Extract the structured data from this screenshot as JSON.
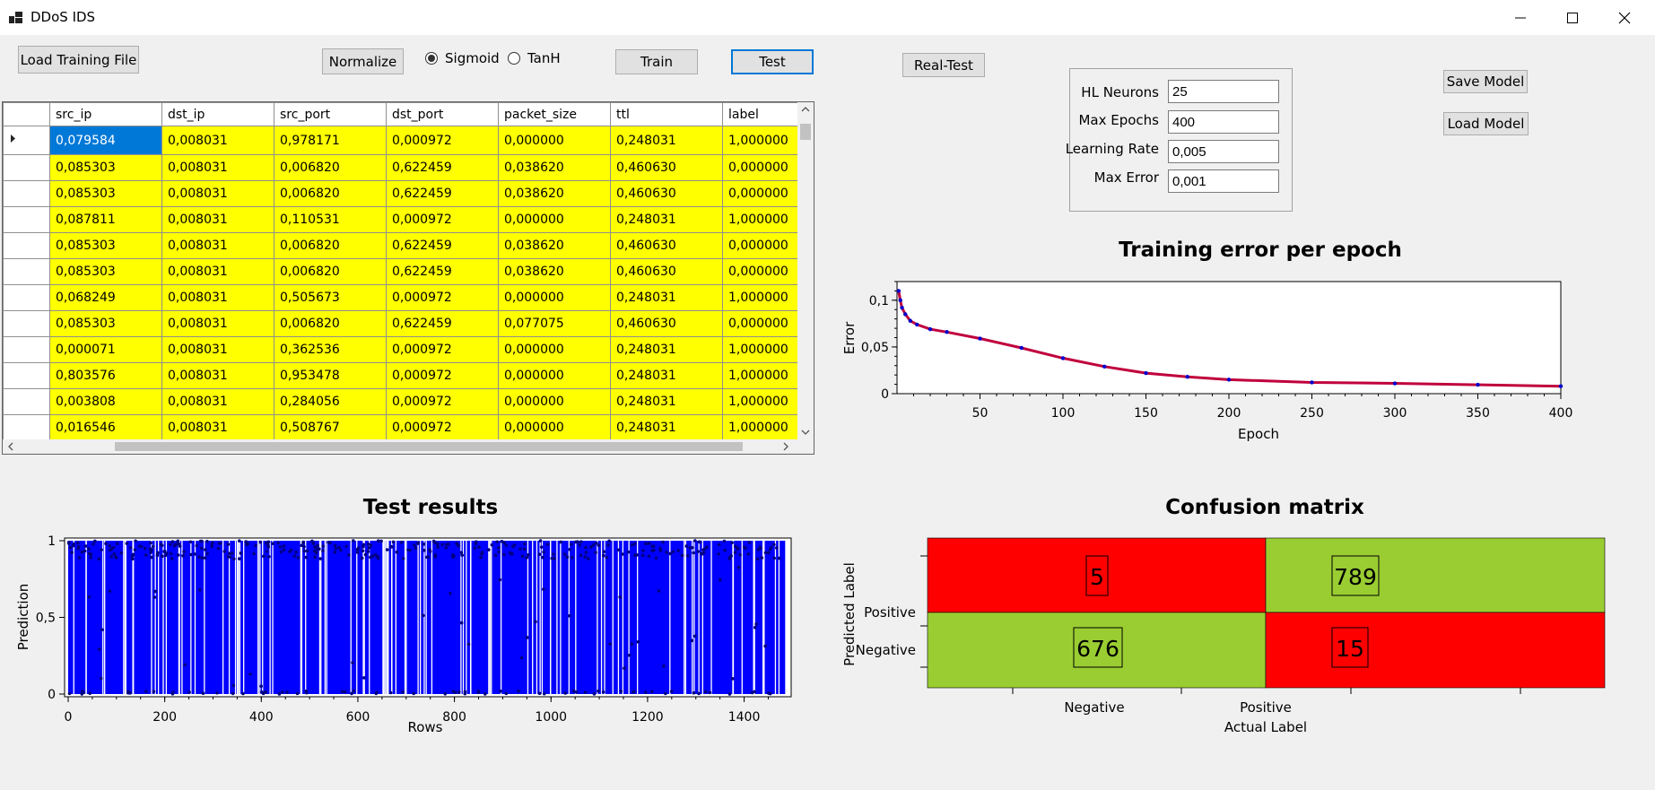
{
  "window": {
    "title": "DDoS IDS"
  },
  "toolbar": {
    "load_training_file": "Load Training File",
    "normalize": "Normalize",
    "sigmoid": "Sigmoid",
    "tanh": "TanH",
    "train": "Train",
    "test": "Test",
    "real_test": "Real-Test",
    "save_model": "Save Model",
    "load_model": "Load Model"
  },
  "activation": {
    "selected": "Sigmoid"
  },
  "params": {
    "hl_neurons": {
      "label": "HL Neurons",
      "value": "25"
    },
    "max_epochs": {
      "label": "Max Epochs",
      "value": "400"
    },
    "learning_rate": {
      "label": "Learning Rate",
      "value": "0,005"
    },
    "max_error": {
      "label": "Max Error",
      "value": "0,001"
    }
  },
  "grid": {
    "columns": [
      "src_ip",
      "dst_ip",
      "src_port",
      "dst_port",
      "packet_size",
      "ttl",
      "label"
    ],
    "rows": [
      [
        "0,079584",
        "0,008031",
        "0,978171",
        "0,000972",
        "0,000000",
        "0,248031",
        "1,000000"
      ],
      [
        "0,085303",
        "0,008031",
        "0,006820",
        "0,622459",
        "0,038620",
        "0,460630",
        "0,000000"
      ],
      [
        "0,085303",
        "0,008031",
        "0,006820",
        "0,622459",
        "0,038620",
        "0,460630",
        "0,000000"
      ],
      [
        "0,087811",
        "0,008031",
        "0,110531",
        "0,000972",
        "0,000000",
        "0,248031",
        "1,000000"
      ],
      [
        "0,085303",
        "0,008031",
        "0,006820",
        "0,622459",
        "0,038620",
        "0,460630",
        "0,000000"
      ],
      [
        "0,085303",
        "0,008031",
        "0,006820",
        "0,622459",
        "0,038620",
        "0,460630",
        "0,000000"
      ],
      [
        "0,068249",
        "0,008031",
        "0,505673",
        "0,000972",
        "0,000000",
        "0,248031",
        "1,000000"
      ],
      [
        "0,085303",
        "0,008031",
        "0,006820",
        "0,622459",
        "0,077075",
        "0,460630",
        "0,000000"
      ],
      [
        "0,000071",
        "0,008031",
        "0,362536",
        "0,000972",
        "0,000000",
        "0,248031",
        "1,000000"
      ],
      [
        "0,803576",
        "0,008031",
        "0,953478",
        "0,000972",
        "0,000000",
        "0,248031",
        "1,000000"
      ],
      [
        "0,003808",
        "0,008031",
        "0,284056",
        "0,000972",
        "0,000000",
        "0,248031",
        "1,000000"
      ],
      [
        "0,016546",
        "0,008031",
        "0,508767",
        "0,000972",
        "0,000000",
        "0,248031",
        "1,000000"
      ]
    ]
  },
  "chart_data": [
    {
      "type": "scatter",
      "title": "Training error per epoch",
      "xlabel": "Epoch",
      "ylabel": "Error",
      "xlim": [
        0,
        400
      ],
      "ylim": [
        0,
        0.12
      ],
      "xticks": [
        "50",
        "100",
        "150",
        "200",
        "250",
        "300",
        "350",
        "400"
      ],
      "yticks": [
        "0",
        "0,05",
        "0,1"
      ],
      "x": [
        1,
        2,
        3,
        5,
        8,
        12,
        20,
        30,
        50,
        75,
        100,
        125,
        150,
        175,
        200,
        250,
        300,
        350,
        400
      ],
      "y": [
        0.11,
        0.1,
        0.092,
        0.085,
        0.078,
        0.074,
        0.069,
        0.066,
        0.059,
        0.049,
        0.038,
        0.029,
        0.022,
        0.018,
        0.015,
        0.012,
        0.011,
        0.0095,
        0.008
      ],
      "colors": {
        "points": "#0000cc",
        "line": "#c0003c"
      }
    },
    {
      "type": "scatter",
      "title": "Test results",
      "xlabel": "Rows",
      "ylabel": "Prediction",
      "xlim": [
        0,
        1490
      ],
      "ylim": [
        0,
        1
      ],
      "xticks": [
        "0",
        "200",
        "400",
        "600",
        "800",
        "1000",
        "1200",
        "1400"
      ],
      "yticks": [
        "0",
        "0,5",
        "1"
      ],
      "n_rows": 1485,
      "colors": {
        "fill": "#0000ff",
        "points": "#000080"
      }
    },
    {
      "type": "heatmap",
      "title": "Confusion matrix",
      "xlabel": "Actual Label",
      "ylabel": "Predicted Label",
      "x_categories": [
        "Negative",
        "Positive"
      ],
      "y_categories": [
        "Positive",
        "Negative"
      ],
      "cells": [
        {
          "actual": "Negative",
          "predicted": "Positive",
          "value": "5",
          "color": "#ff0000"
        },
        {
          "actual": "Positive",
          "predicted": "Positive",
          "value": "789",
          "color": "#9acd32"
        },
        {
          "actual": "Negative",
          "predicted": "Negative",
          "value": "676",
          "color": "#9acd32"
        },
        {
          "actual": "Positive",
          "predicted": "Negative",
          "value": "15",
          "color": "#ff0000"
        }
      ]
    }
  ]
}
